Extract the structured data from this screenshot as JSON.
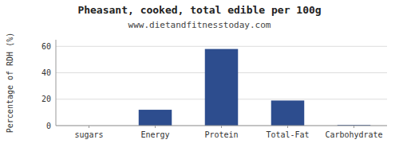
{
  "chart_data": {
    "type": "bar",
    "title": "Pheasant, cooked, total edible per 100g",
    "subtitle": "www.dietandfitnesstoday.com",
    "categories": [
      "sugars",
      "Energy",
      "Protein",
      "Total-Fat",
      "Carbohydrate"
    ],
    "values": [
      0.0,
      12.0,
      58.0,
      19.0,
      0.5
    ],
    "color": "#2d4d8e",
    "ylabel": "Percentage of RDH (%)",
    "ylim": [
      0,
      65
    ],
    "yticks": [
      0,
      20,
      40,
      60
    ],
    "grid": true
  }
}
